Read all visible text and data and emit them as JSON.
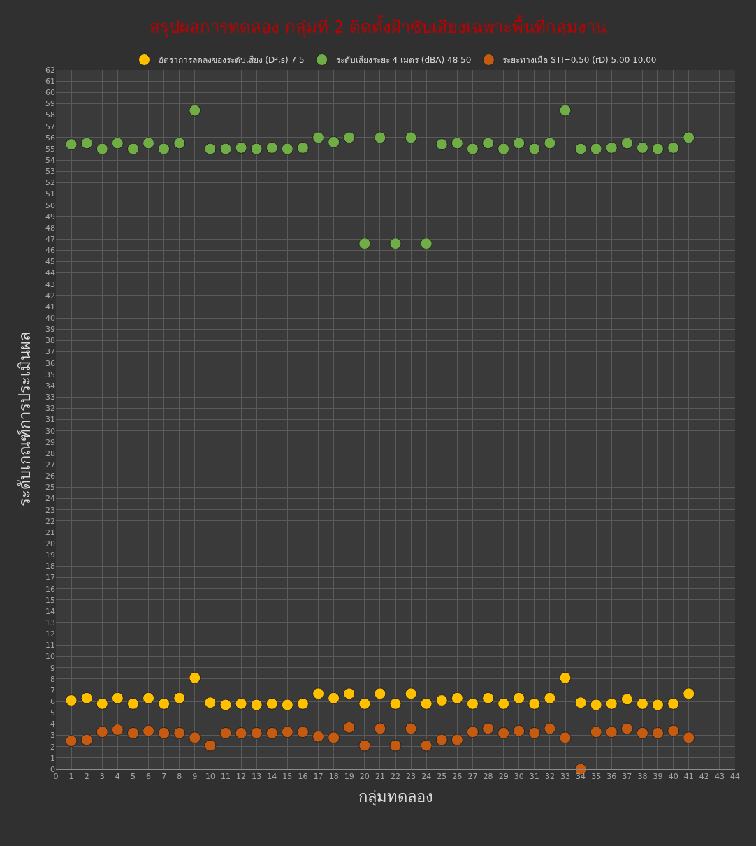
{
  "chart_data": {
    "type": "scatter",
    "title": "สรุปผลการทดลอง กลุ่มที่ 2 ติดตั้งฝ้าซับเสียงเฉพาะพื้นที่กลุ่มงาน",
    "xlabel": "กลุ่มทดลอง",
    "ylabel": "ระดับเกณฑ์การประเมินผล",
    "x": [
      1,
      2,
      3,
      4,
      5,
      6,
      7,
      8,
      9,
      10,
      11,
      12,
      13,
      14,
      15,
      16,
      17,
      18,
      19,
      20,
      21,
      22,
      23,
      24,
      25,
      26,
      27,
      28,
      29,
      30,
      31,
      32,
      33,
      34,
      35,
      36,
      37,
      38,
      39,
      40,
      41
    ],
    "series": [
      {
        "name": "อัตราการลดลงของระดับเสียง (D²,s) 7 5",
        "color": "#ffc000",
        "values": [
          6.1,
          6.3,
          5.8,
          6.3,
          5.8,
          6.3,
          5.8,
          6.3,
          8.1,
          5.9,
          5.7,
          5.8,
          5.7,
          5.8,
          5.7,
          5.8,
          6.7,
          6.3,
          6.7,
          5.8,
          6.7,
          5.8,
          6.7,
          5.8,
          6.1,
          6.3,
          5.8,
          6.3,
          5.8,
          6.3,
          5.8,
          6.3,
          8.1,
          5.9,
          5.7,
          5.8,
          6.2,
          5.8,
          5.7,
          5.8,
          6.7
        ]
      },
      {
        "name": "ระดับเสียงระยะ 4 เมตร (dBA) 48 50",
        "color": "#70ad47",
        "values": [
          55.4,
          55.5,
          55,
          55.5,
          55,
          55.5,
          55,
          55.5,
          58.4,
          55,
          55,
          55.1,
          55,
          55.1,
          55,
          55.1,
          56,
          55.6,
          56,
          46.6,
          56,
          46.6,
          56,
          46.6,
          55.4,
          55.5,
          55,
          55.5,
          55,
          55.5,
          55,
          55.5,
          58.4,
          55,
          55,
          55.1,
          55.5,
          55.1,
          55,
          55.1,
          56
        ]
      },
      {
        "name": "ระยะทางเมื่อ STI=0.50 (rD) 5.00 10.00",
        "color": "#c55a11",
        "values": [
          2.5,
          2.6,
          3.3,
          3.5,
          3.2,
          3.4,
          3.2,
          3.2,
          2.8,
          2.1,
          3.2,
          3.2,
          3.2,
          3.2,
          3.3,
          3.3,
          2.9,
          2.8,
          3.7,
          2.1,
          3.6,
          2.1,
          3.6,
          2.1,
          2.6,
          2.6,
          3.3,
          3.6,
          3.2,
          3.4,
          3.2,
          3.6,
          2.8,
          0,
          3.3,
          3.3,
          3.6,
          3.2,
          3.2,
          3.4,
          2.8
        ]
      }
    ],
    "xlim": [
      0,
      44
    ],
    "xticks": [
      0,
      1,
      2,
      3,
      4,
      5,
      6,
      7,
      8,
      9,
      10,
      11,
      12,
      13,
      14,
      15,
      16,
      17,
      18,
      19,
      20,
      21,
      22,
      23,
      24,
      25,
      26,
      27,
      28,
      29,
      30,
      31,
      32,
      33,
      34,
      35,
      36,
      37,
      38,
      39,
      40,
      41,
      42,
      43,
      44
    ],
    "ylim": [
      0,
      62
    ],
    "yticks": [
      0,
      1,
      2,
      3,
      4,
      5,
      6,
      7,
      8,
      9,
      10,
      11,
      12,
      13,
      14,
      15,
      16,
      17,
      18,
      19,
      20,
      21,
      22,
      23,
      24,
      25,
      26,
      27,
      28,
      29,
      30,
      31,
      32,
      33,
      34,
      35,
      36,
      37,
      38,
      39,
      40,
      41,
      42,
      43,
      44,
      45,
      46,
      47,
      48,
      49,
      50,
      51,
      52,
      53,
      54,
      55,
      56,
      57,
      58,
      59,
      60,
      61,
      62
    ],
    "grid": true,
    "legend": "top",
    "marker": "circle"
  }
}
